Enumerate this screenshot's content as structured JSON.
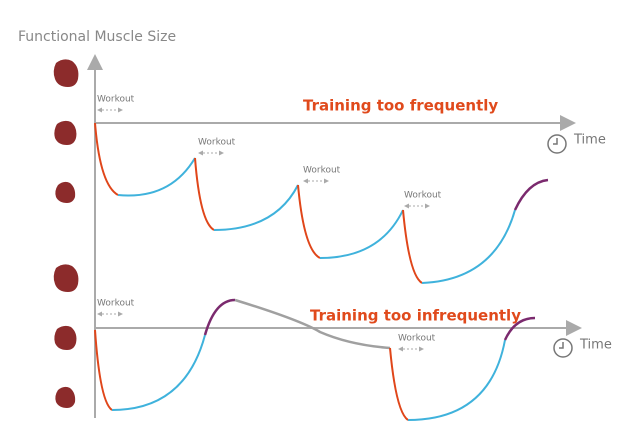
{
  "y_axis_label": "Functional Muscle Size",
  "panels": [
    {
      "title": "Training too frequently",
      "x_axis_label": "Time",
      "workouts": [
        "Workout",
        "Workout",
        "Workout",
        "Workout"
      ]
    },
    {
      "title": "Training too infrequently",
      "x_axis_label": "Time",
      "workouts": [
        "Workout",
        "Workout"
      ]
    }
  ]
}
